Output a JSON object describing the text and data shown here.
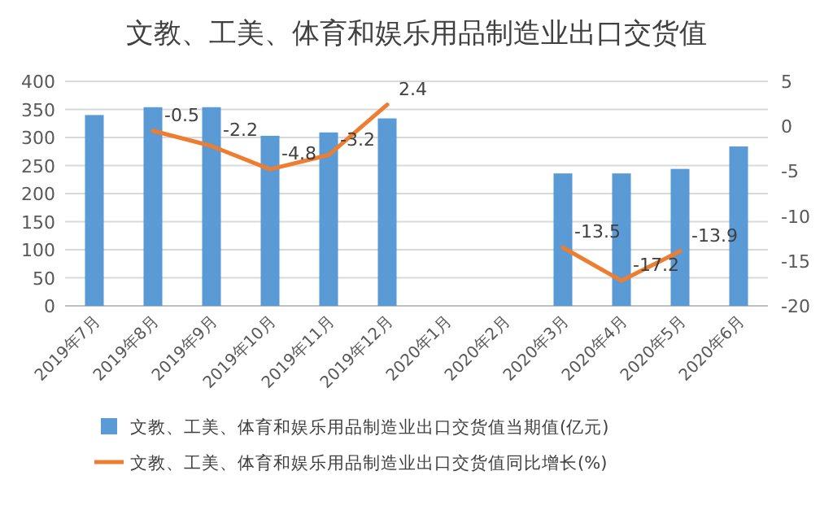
{
  "chart_data": {
    "type": "bar",
    "title": "文教、工美、体育和娱乐用品制造业出口交货值",
    "categories": [
      "2019年7月",
      "2019年8月",
      "2019年9月",
      "2019年10月",
      "2019年11月",
      "2019年12月",
      "2020年1月",
      "2020年2月",
      "2020年3月",
      "2020年4月",
      "2020年5月",
      "2020年6月"
    ],
    "series": [
      {
        "name": "文教、工美、体育和娱乐用品制造业出口交货值当期值(亿元)",
        "color": "#5b9bd5",
        "values": [
          340,
          354,
          354,
          303,
          309,
          334,
          null,
          null,
          236,
          236,
          244,
          284
        ]
      },
      {
        "name": "文教、工美、体育和娱乐用品制造业出口交货值同比增长(%)",
        "type": "line",
        "axis": "y2",
        "color": "#ed7d31",
        "values": [
          null,
          -0.5,
          -2.2,
          -4.8,
          -3.2,
          2.4,
          null,
          null,
          -13.5,
          -17.2,
          -13.9,
          null
        ],
        "data_labels": true
      }
    ],
    "ylim": [
      0,
      400
    ],
    "yticks": [
      0,
      50,
      100,
      150,
      200,
      250,
      300,
      350,
      400
    ],
    "y2lim": [
      -20,
      5
    ],
    "y2ticks": [
      -20,
      -15,
      -10,
      -5,
      0,
      5
    ],
    "grid": "y",
    "legend": "bottom"
  }
}
